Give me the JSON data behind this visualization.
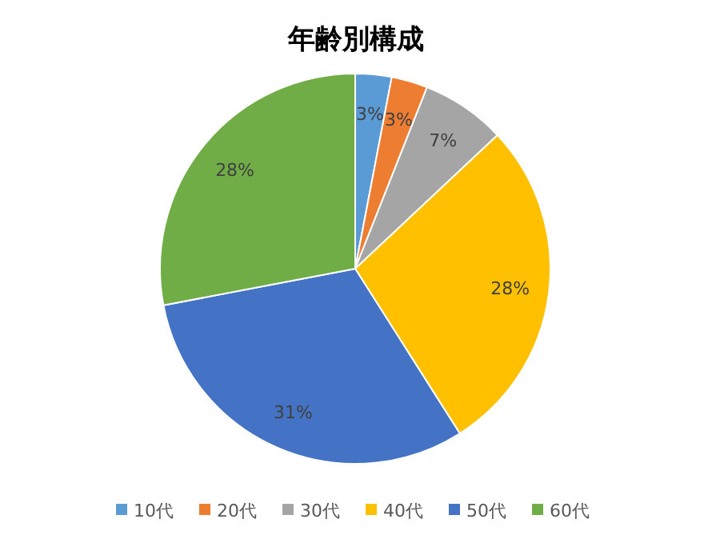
{
  "chart_data": {
    "type": "pie",
    "title": "年齢別構成",
    "categories": [
      "10代",
      "20代",
      "30代",
      "40代",
      "50代",
      "60代"
    ],
    "values": [
      3,
      3,
      7,
      28,
      31,
      28
    ],
    "colors": [
      "#5b9bd5",
      "#ed7d31",
      "#a5a5a5",
      "#ffc000",
      "#4472c4",
      "#70ad47"
    ],
    "value_labels": [
      "3%",
      "3%",
      "7%",
      "28%",
      "31%",
      "28%"
    ],
    "legend": "bottom"
  }
}
